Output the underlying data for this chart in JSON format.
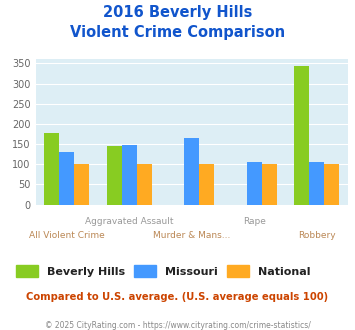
{
  "title_line1": "2016 Beverly Hills",
  "title_line2": "Violent Crime Comparison",
  "categories": [
    "All Violent Crime",
    "Aggravated Assault",
    "Murder & Mans...",
    "Rape",
    "Robbery"
  ],
  "beverly_hills": [
    178,
    145,
    0,
    0,
    343
  ],
  "missouri": [
    130,
    147,
    165,
    105,
    105
  ],
  "national": [
    100,
    100,
    100,
    100,
    100
  ],
  "color_bh": "#88cc22",
  "color_mo": "#4499ff",
  "color_nat": "#ffaa22",
  "ylim": [
    0,
    360
  ],
  "yticks": [
    0,
    50,
    100,
    150,
    200,
    250,
    300,
    350
  ],
  "background_color": "#ddeef5",
  "footer_text": "Compared to U.S. average. (U.S. average equals 100)",
  "copyright_text": "© 2025 CityRating.com - https://www.cityrating.com/crime-statistics/",
  "legend_labels": [
    "Beverly Hills",
    "Missouri",
    "National"
  ],
  "title_color": "#1155cc",
  "footer_color": "#cc4400",
  "copyright_color": "#888888",
  "xtick_top_color": "#999999",
  "xtick_bot_color": "#bb8855"
}
